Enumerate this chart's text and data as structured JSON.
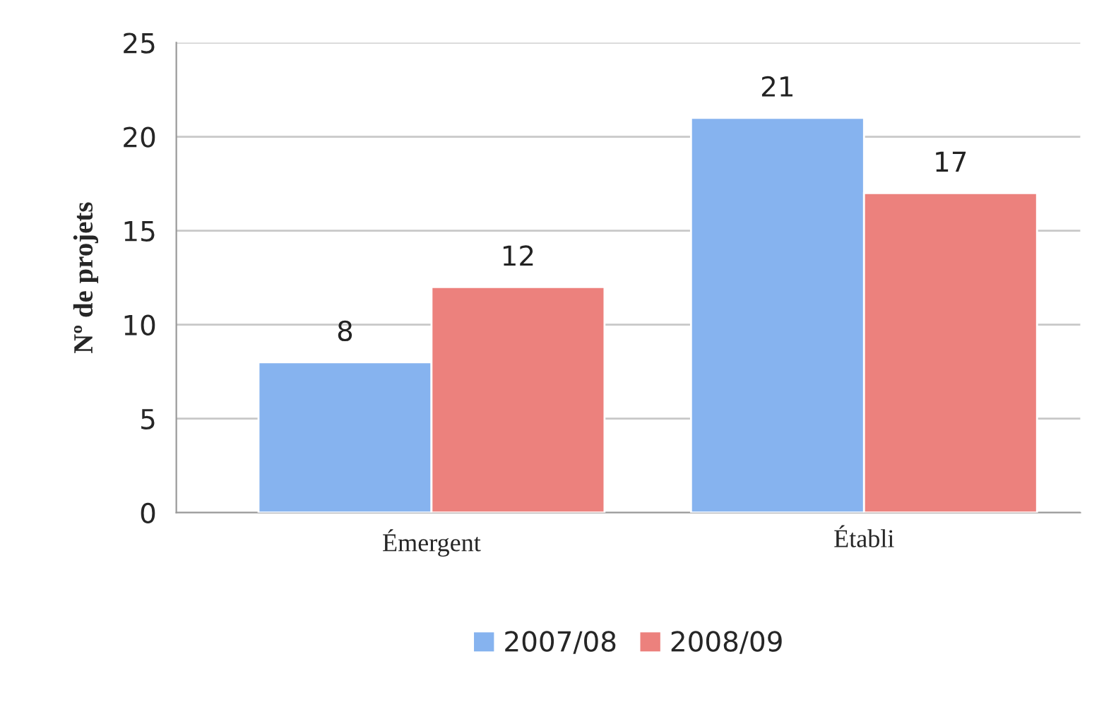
{
  "chart_data": {
    "type": "bar",
    "ylabel": "Nº de projets",
    "categories": [
      "Émergent",
      "Établi"
    ],
    "series": [
      {
        "name": "2007/08",
        "color": "#86b3ef",
        "values": [
          8,
          21
        ]
      },
      {
        "name": "2008/09",
        "color": "#ec817d",
        "values": [
          12,
          17
        ]
      }
    ],
    "ylim": [
      0,
      25
    ],
    "yticks": [
      0,
      5,
      10,
      15,
      20,
      25
    ],
    "grid": "y",
    "legend": "bottom",
    "data_labels": true
  }
}
